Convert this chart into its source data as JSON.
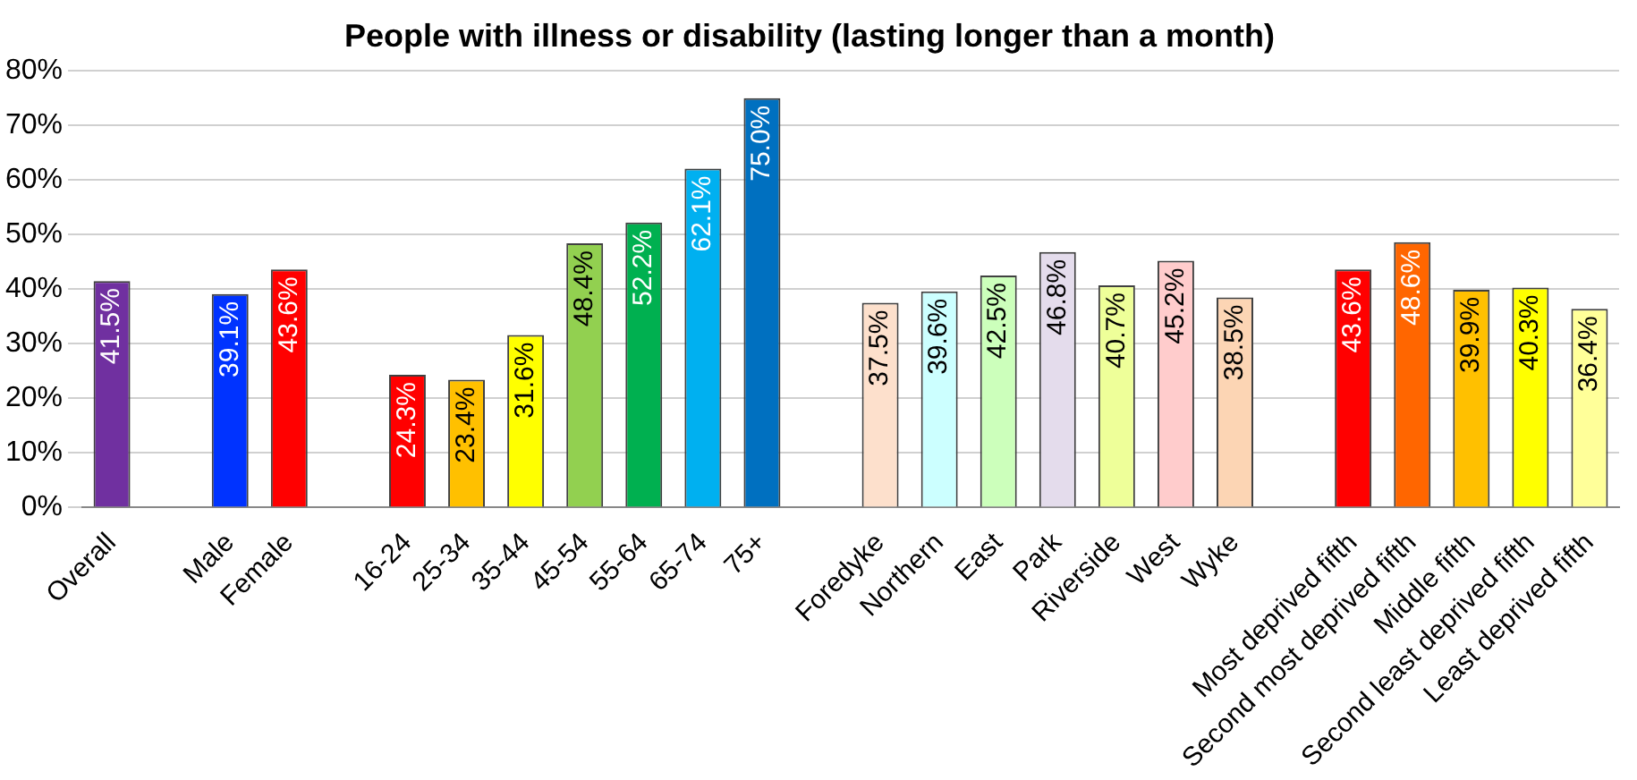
{
  "chart_data": {
    "type": "bar",
    "title": "People with illness or disability (lasting longer than a month)",
    "categories": [
      "Overall",
      null,
      "Male",
      "Female",
      null,
      "16-24",
      "25-34",
      "35-44",
      "45-54",
      "55-64",
      "65-74",
      "75+",
      null,
      "Foredyke",
      "Northern",
      "East",
      "Park",
      "Riverside",
      "West",
      "Wyke",
      null,
      "Most deprived fifth",
      "Second most deprived fifth",
      "Middle fifth",
      "Second least deprived fifth",
      "Least deprived fifth"
    ],
    "values": [
      41.5,
      null,
      39.1,
      43.6,
      null,
      24.3,
      23.4,
      31.6,
      48.4,
      52.2,
      62.1,
      75.0,
      null,
      37.5,
      39.6,
      42.5,
      46.8,
      40.7,
      45.2,
      38.5,
      null,
      43.6,
      48.6,
      39.9,
      40.3,
      36.4
    ],
    "value_labels": [
      "41.5%",
      null,
      "39.1%",
      "43.6%",
      null,
      "24.3%",
      "23.4%",
      "31.6%",
      "48.4%",
      "52.2%",
      "62.1%",
      "75.0%",
      null,
      "37.5%",
      "39.6%",
      "42.5%",
      "46.8%",
      "40.7%",
      "45.2%",
      "38.5%",
      null,
      "43.6%",
      "48.6%",
      "39.9%",
      "40.3%",
      "36.4%"
    ],
    "colors": [
      "#7030a0",
      null,
      "#0033ff",
      "#ff0000",
      null,
      "#ff0000",
      "#ffc000",
      "#ffff00",
      "#92d050",
      "#00b050",
      "#00b0f0",
      "#0070c0",
      null,
      "#fde0cc",
      "#ccffff",
      "#ccffbb",
      "#e4dcec",
      "#eeff99",
      "#ffcccc",
      "#fcd5b4",
      null,
      "#ff0000",
      "#ff6600",
      "#ffc000",
      "#ffff00",
      "#ffff99"
    ],
    "ylim": [
      0,
      80
    ],
    "yticks": [
      {
        "value": 0,
        "label": "0%"
      },
      {
        "value": 10,
        "label": "10%"
      },
      {
        "value": 20,
        "label": "20%"
      },
      {
        "value": 30,
        "label": "30%"
      },
      {
        "value": 40,
        "label": "40%"
      },
      {
        "value": 50,
        "label": "50%"
      },
      {
        "value": 60,
        "label": "60%"
      },
      {
        "value": 70,
        "label": "70%"
      },
      {
        "value": 80,
        "label": "80%"
      }
    ],
    "grid": "y",
    "legend": false
  }
}
